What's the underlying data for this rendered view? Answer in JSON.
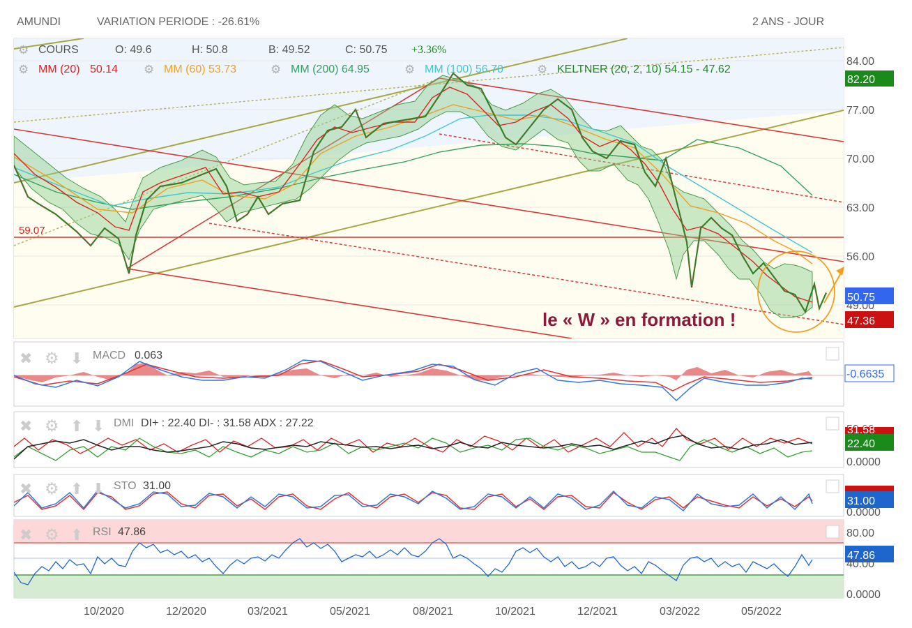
{
  "header": {
    "symbol": "AMUNDI",
    "variation": "VARIATION PERIODE : -26.61%",
    "period": "2 ANS - JOUR"
  },
  "legend": {
    "cours_label": "COURS",
    "open": "O: 49.6",
    "high": "H: 50.8",
    "low": "B: 49.52",
    "close": "C: 50.75",
    "change": "+3.36%",
    "ma20": "MM (20)",
    "ma20_value": "50.14",
    "ma60": "MM (60) 53.73",
    "ma200": "MM (200) 64.95",
    "ma100": "MM (100) 56.70",
    "keltner": "KELTNER (20, 2, 10) 54.15 - 47.62"
  },
  "annotation": {
    "text": "le « W » en formation !",
    "level_label": "59.07"
  },
  "price_axis": {
    "ticks": [
      "84.00",
      "77.00",
      "70.00",
      "63.00",
      "56.00",
      "49.00"
    ],
    "tags": [
      "82.20",
      "50.75",
      "47.36"
    ]
  },
  "macd": {
    "label": "MACD",
    "value": "0.063",
    "tag": "-0.6635"
  },
  "dmi": {
    "label": "DMI",
    "values": "DI+ : 22.40 DI- : 31.58 ADX : 27.22",
    "tick_top": "50.00",
    "tick_bottom": "0.0000",
    "tag": "22.40",
    "tag_hidden": "31.58"
  },
  "sto": {
    "label": "STO",
    "value": "31.00",
    "tick_bottom": "0.0000",
    "tag": "31.00"
  },
  "rsi": {
    "label": "RSI",
    "value": "47.86",
    "ticks": [
      "80.00",
      "40.00",
      "0.0000"
    ],
    "tag": "47.86"
  },
  "colors": {
    "ma20": "#dd2222",
    "ma60": "#f0a020",
    "ma200": "#33a060",
    "ma100": "#40c8d0",
    "keltner": "#1f8a1f",
    "channel_red": "#d43a3a",
    "channel_olive": "#a8a640",
    "annotation": "#8b1a3a",
    "tag_green": "#1a8a1a",
    "tag_blue": "#3366ee",
    "tag_red": "#cc1111"
  },
  "chart_data": {
    "type": "line",
    "x_ticks": [
      "10/2020",
      "12/2020",
      "03/2021",
      "05/2021",
      "08/2021",
      "10/2021",
      "12/2021",
      "03/2022",
      "05/2022"
    ],
    "ylim": [
      46,
      86
    ],
    "price_path": [
      [
        0,
        69
      ],
      [
        20,
        64.5
      ],
      [
        35,
        63.5
      ],
      [
        60,
        62
      ],
      [
        90,
        59.5
      ],
      [
        110,
        57.5
      ],
      [
        130,
        60
      ],
      [
        150,
        58.5
      ],
      [
        165,
        53.5
      ],
      [
        175,
        59
      ],
      [
        190,
        64
      ],
      [
        210,
        66
      ],
      [
        240,
        66.5
      ],
      [
        265,
        67.5
      ],
      [
        290,
        68.5
      ],
      [
        305,
        66
      ],
      [
        320,
        61
      ],
      [
        335,
        62
      ],
      [
        350,
        64.5
      ],
      [
        365,
        62
      ],
      [
        385,
        63.5
      ],
      [
        410,
        64
      ],
      [
        430,
        71
      ],
      [
        450,
        74
      ],
      [
        470,
        74.5
      ],
      [
        490,
        77
      ],
      [
        505,
        73
      ],
      [
        530,
        75
      ],
      [
        560,
        75.5
      ],
      [
        590,
        76
      ],
      [
        610,
        79
      ],
      [
        630,
        82.2
      ],
      [
        650,
        80.5
      ],
      [
        670,
        80
      ],
      [
        690,
        76
      ],
      [
        705,
        73
      ],
      [
        720,
        72
      ],
      [
        740,
        74.5
      ],
      [
        760,
        77
      ],
      [
        780,
        78.5
      ],
      [
        800,
        77
      ],
      [
        815,
        73
      ],
      [
        830,
        71
      ],
      [
        850,
        70
      ],
      [
        870,
        72.5
      ],
      [
        890,
        72
      ],
      [
        905,
        68
      ],
      [
        920,
        66
      ],
      [
        935,
        70
      ],
      [
        950,
        64
      ],
      [
        965,
        58
      ],
      [
        972,
        51.5
      ],
      [
        985,
        60
      ],
      [
        1000,
        61.5
      ],
      [
        1015,
        60
      ],
      [
        1030,
        59
      ],
      [
        1045,
        56
      ],
      [
        1060,
        53.5
      ],
      [
        1075,
        55
      ],
      [
        1090,
        53
      ],
      [
        1105,
        51
      ],
      [
        1120,
        50.5
      ],
      [
        1135,
        48
      ],
      [
        1148,
        52
      ],
      [
        1155,
        48.5
      ],
      [
        1165,
        50.75
      ]
    ]
  }
}
